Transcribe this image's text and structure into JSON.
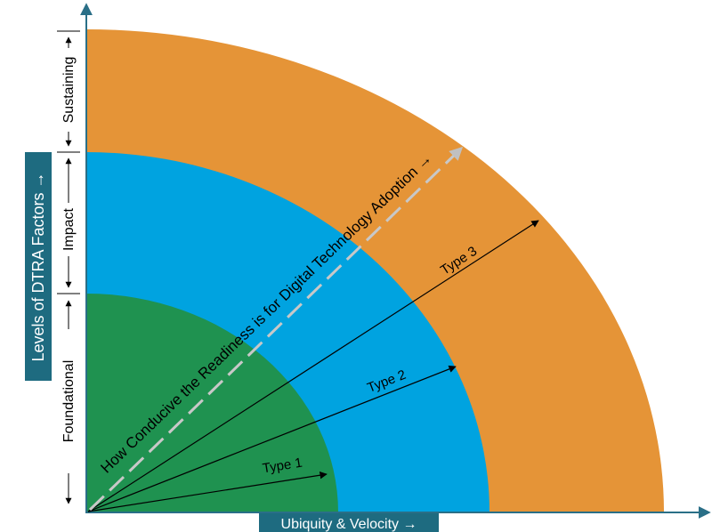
{
  "diagram": {
    "x_axis_title": "Ubiquity & Velocity →",
    "y_axis_title": "Levels of DTRA Factors →",
    "levels": [
      {
        "label": "Foundational",
        "color": "#1f9250"
      },
      {
        "label": "Impact",
        "color": "#00a3e0"
      },
      {
        "label": "Sustaining",
        "color": "#e59437"
      }
    ],
    "diagonal_label": "How Conducive the Readiness is for Digital Technology Adoption →",
    "types": [
      "Type 1",
      "Type 2",
      "Type 3"
    ],
    "colors": {
      "axis": "#2a6f87",
      "title_box": "#1e6b80",
      "dashed_arrow": "#c0c0c0"
    }
  }
}
